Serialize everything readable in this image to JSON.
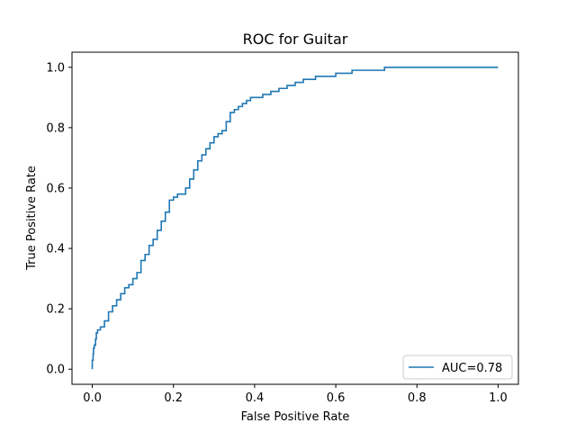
{
  "chart_data": {
    "type": "line",
    "title": "ROC for Guitar",
    "xlabel": "False Positive Rate",
    "ylabel": "True Positive Rate",
    "xlim": [
      -0.05,
      1.05
    ],
    "ylim": [
      -0.05,
      1.05
    ],
    "xticks": [
      "0.0",
      "0.2",
      "0.4",
      "0.6",
      "0.8",
      "1.0"
    ],
    "yticks": [
      "0.0",
      "0.2",
      "0.4",
      "0.6",
      "0.8",
      "1.0"
    ],
    "grid": false,
    "legend_position": "lower-right",
    "series": [
      {
        "name": "AUC=0.78",
        "color": "#1f77b4",
        "step": true,
        "x": [
          0.0,
          0.0,
          0.002,
          0.003,
          0.005,
          0.008,
          0.01,
          0.013,
          0.02,
          0.03,
          0.04,
          0.05,
          0.06,
          0.07,
          0.08,
          0.09,
          0.1,
          0.11,
          0.12,
          0.13,
          0.14,
          0.15,
          0.16,
          0.17,
          0.18,
          0.19,
          0.2,
          0.21,
          0.22,
          0.23,
          0.24,
          0.25,
          0.26,
          0.27,
          0.28,
          0.29,
          0.3,
          0.31,
          0.32,
          0.33,
          0.34,
          0.35,
          0.36,
          0.37,
          0.38,
          0.39,
          0.4,
          0.42,
          0.44,
          0.46,
          0.48,
          0.5,
          0.52,
          0.55,
          0.58,
          0.6,
          0.62,
          0.64,
          0.66,
          0.7,
          0.72,
          0.8,
          0.9,
          1.0
        ],
        "y": [
          0.0,
          0.03,
          0.05,
          0.07,
          0.08,
          0.1,
          0.12,
          0.13,
          0.14,
          0.16,
          0.19,
          0.21,
          0.23,
          0.25,
          0.27,
          0.28,
          0.3,
          0.32,
          0.36,
          0.38,
          0.41,
          0.43,
          0.46,
          0.49,
          0.52,
          0.56,
          0.57,
          0.58,
          0.58,
          0.6,
          0.63,
          0.66,
          0.69,
          0.71,
          0.73,
          0.75,
          0.77,
          0.78,
          0.79,
          0.82,
          0.85,
          0.86,
          0.87,
          0.88,
          0.89,
          0.9,
          0.9,
          0.91,
          0.92,
          0.93,
          0.94,
          0.95,
          0.96,
          0.97,
          0.97,
          0.98,
          0.98,
          0.99,
          0.99,
          0.99,
          1.0,
          1.0,
          1.0,
          1.0
        ]
      }
    ]
  }
}
